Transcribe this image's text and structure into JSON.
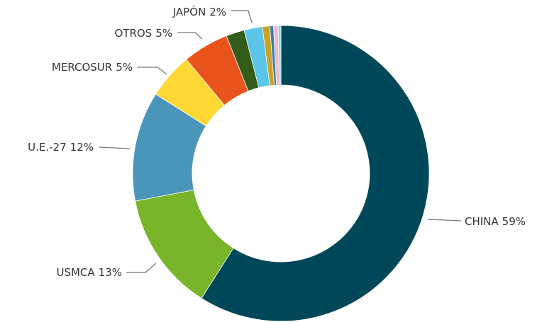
{
  "chart_data": {
    "type": "donut",
    "categories": [
      "CHINA",
      "USMCA",
      "U.E.-27",
      "MERCOSUR",
      "OTROS",
      null,
      "JAPÓN",
      null,
      null,
      null,
      null
    ],
    "values": [
      59,
      13,
      12,
      5,
      5,
      2,
      2,
      0.8,
      0.4,
      0.5,
      0.3
    ],
    "value_labels": [
      "59%",
      "13%",
      "12%",
      "5%",
      "5%",
      null,
      "2%",
      null,
      null,
      null,
      null
    ],
    "colors": [
      "#00475a",
      "#78b52a",
      "#4a96bb",
      "#fdd835",
      "#e8541c",
      "#335c1a",
      "#5bc5ea",
      "#c9a227",
      "#3f7fa8",
      "#f2b8c6",
      "#8fd3df"
    ]
  }
}
